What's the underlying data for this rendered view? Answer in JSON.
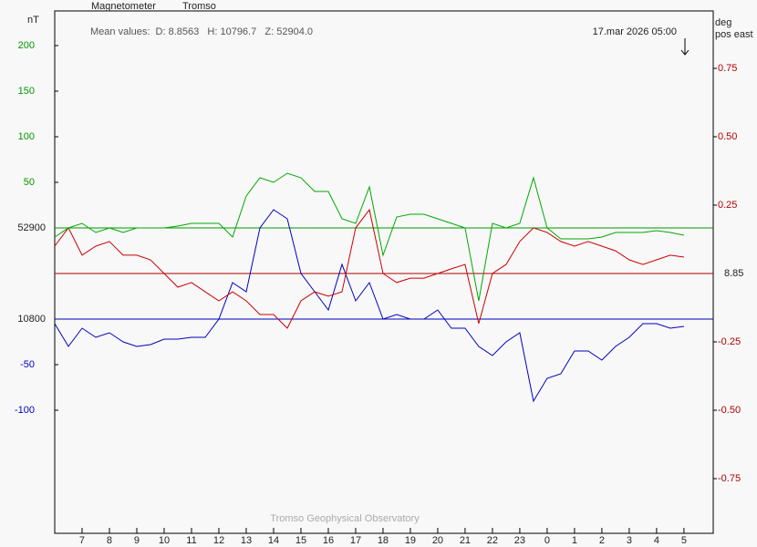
{
  "chart_data": {
    "type": "line",
    "title": "Magnetometer",
    "station": "Tromso",
    "subtitle": "Mean values:  D: 8.8563   H: 10796.7   Z: 52904.0",
    "timestamp": "17.mar 2026 05:00",
    "y_label": "nT",
    "y2_label": "deg",
    "y2_sublabel": "pos east",
    "footer": "Tromso Geophysical Observatory",
    "xlim": [
      6,
      30.07
    ],
    "xticks": [
      7,
      8,
      9,
      10,
      11,
      12,
      13,
      14,
      15,
      16,
      17,
      18,
      19,
      20,
      21,
      22,
      23,
      {
        "value": 24,
        "label": "0"
      },
      {
        "value": 25,
        "label": "1"
      },
      {
        "value": 26,
        "label": "2"
      },
      {
        "value": 27,
        "label": "3"
      },
      {
        "value": 28,
        "label": "4"
      },
      {
        "value": 29,
        "label": "5"
      }
    ],
    "x": [
      6,
      6.5,
      7,
      7.5,
      8,
      8.5,
      9,
      9.5,
      10,
      10.5,
      11,
      11.5,
      12,
      12.5,
      13,
      13.5,
      14,
      14.5,
      15,
      15.5,
      16,
      16.5,
      17,
      17.5,
      18,
      18.5,
      19,
      19.5,
      20,
      20.5,
      21,
      21.5,
      22,
      22.5,
      23,
      23.5,
      24,
      24.5,
      25,
      25.5,
      26,
      26.5,
      27,
      27.5,
      28,
      28.5,
      29
    ],
    "axes": {
      "z": {
        "side": "left",
        "color": "#009900",
        "baseline": 52900,
        "ylim": [
          52565,
          53138
        ],
        "ticks": [
          {
            "value": 53100,
            "label": "200"
          },
          {
            "value": 53050,
            "label": "150"
          },
          {
            "value": 53000,
            "label": "100"
          },
          {
            "value": 52950,
            "label": "50"
          }
        ]
      },
      "h": {
        "side": "left",
        "color": "#0000c0",
        "baseline": 10800,
        "ylim": [
          10565,
          11138
        ],
        "ticks": [
          {
            "value": 10750,
            "label": "-50"
          },
          {
            "value": 10700,
            "label": "-100"
          }
        ]
      },
      "d": {
        "side": "right",
        "color": "#b00000",
        "baseline": 8.85,
        "ylim": [
          7.9,
          9.81
        ],
        "ticks": [
          {
            "value": 9.6,
            "label": "0.75"
          },
          {
            "value": 9.35,
            "label": "0.50"
          },
          {
            "value": 9.1,
            "label": "0.25"
          },
          {
            "value": 8.6,
            "label": "-0.25"
          },
          {
            "value": 8.35,
            "label": "-0.50"
          },
          {
            "value": 8.1,
            "label": "-0.75"
          }
        ]
      }
    },
    "series": [
      {
        "axis": "h",
        "color": "#0000c0",
        "values": [
          10795,
          10770,
          10790,
          10780,
          10785,
          10775,
          10770,
          10772,
          10778,
          10778,
          10780,
          10780,
          10800,
          10840,
          10830,
          10900,
          10920,
          10910,
          10850,
          10830,
          10810,
          10860,
          10820,
          10840,
          10800,
          10805,
          10800,
          10800,
          10810,
          10790,
          10790,
          10770,
          10760,
          10775,
          10785,
          10710,
          10735,
          10740,
          10765,
          10765,
          10755,
          10770,
          10780,
          10795,
          10795,
          10790,
          10792
        ]
      },
      {
        "axis": "d",
        "color": "#cc0000",
        "values": [
          8.95,
          9.017,
          8.917,
          8.95,
          8.967,
          8.917,
          8.917,
          8.9,
          8.85,
          8.8,
          8.817,
          8.783,
          8.75,
          8.783,
          8.75,
          8.7,
          8.7,
          8.65,
          8.75,
          8.783,
          8.767,
          8.783,
          9.017,
          9.083,
          8.85,
          8.817,
          8.833,
          8.833,
          8.85,
          8.867,
          8.883,
          8.667,
          8.85,
          8.883,
          8.967,
          9.017,
          9.0,
          8.967,
          8.95,
          8.967,
          8.95,
          8.933,
          8.9,
          8.883,
          8.9,
          8.917,
          8.91
        ]
      },
      {
        "axis": "z",
        "color": "#00aa00",
        "values": [
          52890,
          52900,
          52905,
          52895,
          52900,
          52895,
          52900,
          52900,
          52900,
          52902,
          52905,
          52905,
          52905,
          52890,
          52935,
          52955,
          52950,
          52960,
          52955,
          52940,
          52940,
          52910,
          52905,
          52945,
          52870,
          52912,
          52915,
          52915,
          52910,
          52905,
          52900,
          52820,
          52905,
          52900,
          52905,
          52955,
          52900,
          52888,
          52888,
          52888,
          52890,
          52895,
          52895,
          52895,
          52897,
          52895,
          52892
        ]
      }
    ]
  }
}
